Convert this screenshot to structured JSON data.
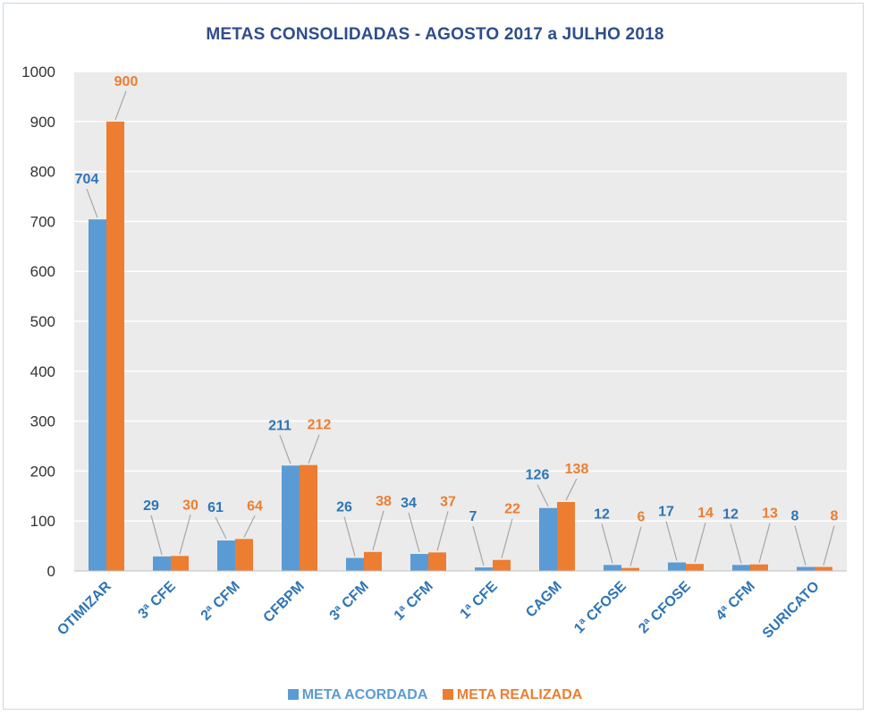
{
  "chart_data": {
    "type": "bar",
    "title": "METAS CONSOLIDADAS  - AGOSTO 2017 a JULHO 2018",
    "categories": [
      "OTIMIZAR",
      "3ª CFE",
      "2ª CFM",
      "CFBPM",
      "3ª CFM",
      "1ª CFM",
      "1ª CFE",
      "CAGM",
      "1ª CFOSE",
      "2ª CFOSE",
      "4ª CFM",
      "SURICATO"
    ],
    "series": [
      {
        "name": "META ACORDADA",
        "color": "#5b9bd5",
        "label_color": "#2e75b6",
        "values": [
          704,
          29,
          61,
          211,
          26,
          34,
          7,
          126,
          12,
          17,
          12,
          8
        ]
      },
      {
        "name": "META REALIZADA",
        "color": "#ed7d31",
        "label_color": "#ed7d31",
        "values": [
          900,
          30,
          64,
          212,
          38,
          37,
          22,
          138,
          6,
          14,
          13,
          8
        ]
      }
    ],
    "y_ticks": [
      "0",
      "100",
      "200",
      "300",
      "400",
      "500",
      "600",
      "700",
      "800",
      "900",
      "1000"
    ],
    "ylim": [
      0,
      1000
    ],
    "xlabel": "",
    "ylabel": "",
    "grid": true,
    "legend": "bottom",
    "plot_bg": "#ebebeb",
    "grid_color": "#ffffff",
    "category_label_color": "#2e75b6"
  }
}
